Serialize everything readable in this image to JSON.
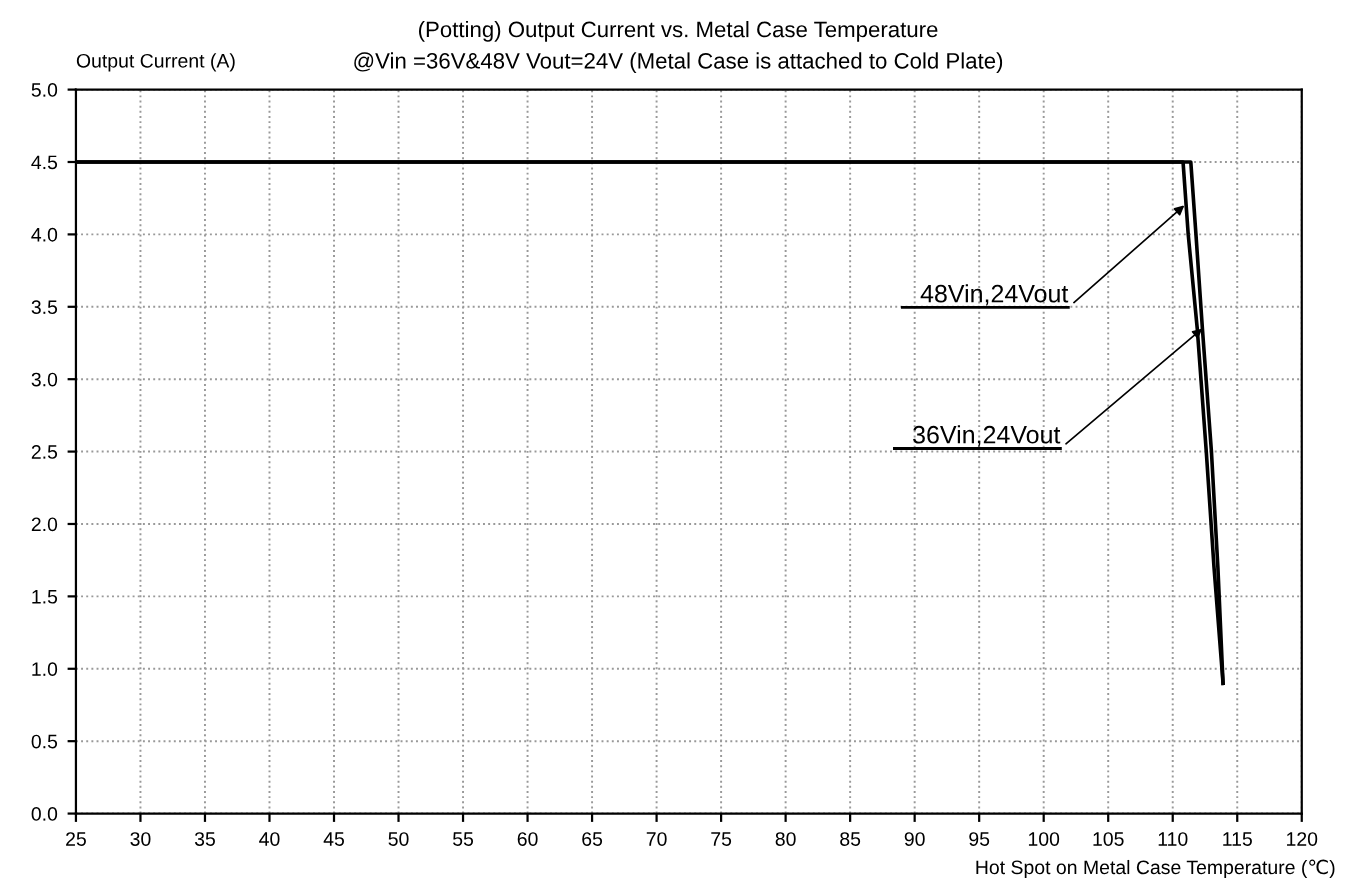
{
  "chart_data": {
    "type": "line",
    "title": "(Potting) Output Current vs. Metal Case Temperature",
    "subtitle": "@Vin =36V&48V Vout=24V (Metal Case is attached to Cold Plate)",
    "xlabel": "Hot Spot on Metal Case Temperature (℃)",
    "ylabel": "Output Current (A)",
    "series": [
      {
        "color": "#000000",
        "x": [
          25,
          110.8,
          111.2,
          111.9,
          112.6,
          113.2,
          113.9
        ],
        "values": [
          4.5,
          4.5,
          4.0,
          3.35,
          2.5,
          1.7,
          0.9
        ]
      },
      {
        "color": "#000000",
        "x": [
          25,
          111.4,
          111.8,
          112.3,
          113.0,
          113.5,
          113.9
        ],
        "values": [
          4.5,
          4.5,
          4.0,
          3.35,
          2.5,
          1.7,
          0.9
        ]
      }
    ],
    "annotations": [
      {
        "text": "48Vin,24Vout",
        "x": 110.9,
        "y": 4.2
      },
      {
        "text": "36Vin,24Vout",
        "x": 112.3,
        "y": 3.35
      }
    ],
    "xlim": [
      25,
      120
    ],
    "xticks": [
      25,
      30,
      35,
      40,
      45,
      50,
      55,
      60,
      65,
      70,
      75,
      80,
      85,
      90,
      95,
      100,
      105,
      110,
      115,
      120
    ],
    "ylim": [
      0,
      5
    ],
    "yticks": [
      {
        "value": 0,
        "label": "0.0"
      },
      {
        "value": 0.5,
        "label": "0.5"
      },
      {
        "value": 1,
        "label": "1.0"
      },
      {
        "value": 1.5,
        "label": "1.5"
      },
      {
        "value": 2,
        "label": "2.0"
      },
      {
        "value": 2.5,
        "label": "2.5"
      },
      {
        "value": 3,
        "label": "3.0"
      },
      {
        "value": 3.5,
        "label": "3.5"
      },
      {
        "value": 4,
        "label": "4.0"
      },
      {
        "value": 4.5,
        "label": "4.5"
      },
      {
        "value": 5,
        "label": "5.0"
      }
    ],
    "grid": true,
    "marker": "none",
    "line_style": "solid"
  }
}
